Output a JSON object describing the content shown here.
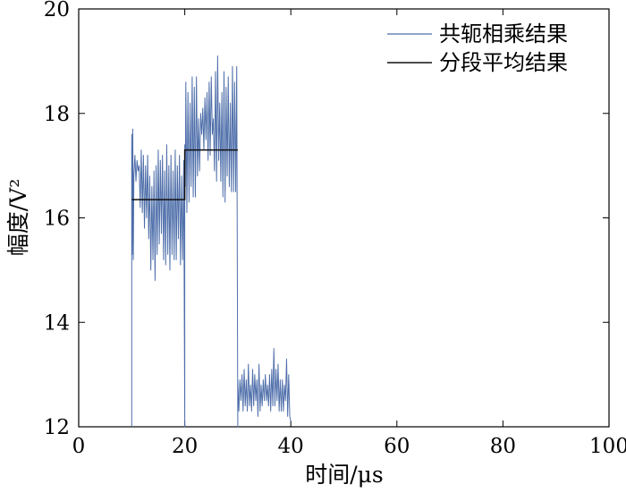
{
  "chart_data": {
    "type": "line",
    "title": "",
    "xlabel": "时间/μs",
    "ylabel": "幅度/V²",
    "xlim": [
      0,
      100
    ],
    "ylim": [
      12,
      20
    ],
    "xticks": [
      0,
      20,
      40,
      60,
      80,
      100
    ],
    "yticks": [
      12,
      14,
      16,
      18,
      20
    ],
    "x_tick_labels": [
      "0",
      "20",
      "40",
      "60",
      "80",
      "100"
    ],
    "y_tick_labels": [
      "12",
      "14",
      "16",
      "18",
      "20"
    ],
    "grid": false,
    "legend_position": "top-right",
    "series": [
      {
        "name": "共轭相乘结果",
        "color": "#4f6faa",
        "x": [
          10.0,
          10.0,
          10.1,
          10.2,
          10.3,
          10.4,
          10.6,
          10.8,
          11.0,
          11.2,
          11.4,
          11.6,
          11.8,
          12.0,
          12.2,
          12.4,
          12.6,
          12.8,
          13.0,
          13.2,
          13.4,
          13.6,
          13.8,
          14.0,
          14.2,
          14.4,
          14.6,
          14.8,
          15.0,
          15.2,
          15.4,
          15.6,
          15.8,
          16.0,
          16.2,
          16.4,
          16.6,
          16.8,
          17.0,
          17.2,
          17.4,
          17.6,
          17.8,
          18.0,
          18.2,
          18.4,
          18.6,
          18.8,
          19.0,
          19.2,
          19.4,
          19.6,
          19.8,
          20.0,
          20.0,
          20.1,
          20.2,
          20.4,
          20.6,
          20.8,
          21.0,
          21.2,
          21.4,
          21.6,
          21.8,
          22.0,
          22.2,
          22.4,
          22.6,
          22.8,
          23.0,
          23.2,
          23.4,
          23.6,
          23.8,
          24.0,
          24.2,
          24.4,
          24.6,
          24.8,
          25.0,
          25.2,
          25.4,
          25.6,
          25.8,
          26.0,
          26.2,
          26.4,
          26.6,
          26.8,
          27.0,
          27.2,
          27.4,
          27.6,
          27.8,
          28.0,
          28.2,
          28.4,
          28.6,
          28.8,
          29.0,
          29.2,
          29.4,
          29.6,
          29.8,
          30.0,
          30.0,
          30.2,
          30.4,
          30.6,
          30.8,
          31.0,
          31.2,
          31.4,
          31.6,
          31.8,
          32.0,
          32.2,
          32.4,
          32.6,
          32.8,
          33.0,
          33.2,
          33.4,
          33.6,
          33.8,
          34.0,
          34.2,
          34.4,
          34.6,
          34.8,
          35.0,
          35.2,
          35.4,
          35.6,
          35.8,
          36.0,
          36.2,
          36.4,
          36.6,
          36.8,
          37.0,
          37.2,
          37.4,
          37.6,
          37.8,
          38.0,
          38.2,
          38.4,
          38.6,
          38.8,
          39.0,
          39.2,
          39.4,
          39.6,
          39.8,
          40.0
        ],
        "y": [
          12.0,
          17.6,
          15.3,
          17.7,
          15.2,
          16.8,
          17.2,
          16.7,
          17.1,
          16.9,
          17.0,
          16.2,
          17.3,
          16.1,
          17.2,
          15.8,
          17.0,
          16.0,
          17.2,
          15.6,
          16.8,
          15.0,
          16.6,
          15.2,
          16.9,
          14.8,
          17.0,
          15.3,
          17.3,
          15.5,
          17.1,
          15.7,
          17.2,
          15.2,
          16.9,
          15.1,
          17.4,
          15.3,
          17.0,
          15.0,
          17.2,
          15.3,
          16.9,
          15.2,
          17.3,
          15.2,
          17.0,
          15.6,
          17.2,
          15.1,
          16.8,
          15.2,
          17.1,
          12.0,
          17.4,
          16.6,
          18.6,
          16.1,
          18.4,
          16.3,
          18.2,
          16.6,
          18.7,
          16.4,
          18.5,
          16.4,
          18.7,
          16.8,
          17.9,
          16.9,
          18.0,
          17.6,
          18.1,
          17.3,
          18.3,
          17.5,
          18.4,
          17.1,
          18.6,
          17.2,
          18.7,
          17.6,
          17.9,
          16.9,
          18.8,
          16.7,
          19.1,
          17.1,
          18.2,
          16.7,
          18.4,
          16.4,
          18.8,
          16.3,
          18.5,
          16.8,
          18.7,
          16.6,
          18.2,
          16.5,
          18.9,
          16.5,
          18.6,
          16.5,
          18.9,
          12.0,
          12.9,
          12.3,
          12.9,
          12.5,
          13.0,
          12.3,
          13.1,
          12.4,
          12.9,
          12.3,
          13.2,
          12.4,
          12.8,
          12.3,
          13.1,
          12.4,
          13.0,
          12.5,
          12.9,
          12.2,
          13.2,
          12.3,
          12.8,
          12.4,
          12.9,
          12.5,
          13.0,
          12.5,
          12.8,
          12.4,
          13.0,
          12.3,
          13.1,
          12.4,
          13.5,
          12.4,
          13.1,
          12.5,
          13.2,
          12.3,
          12.9,
          12.3,
          12.9,
          12.3,
          12.8,
          12.5,
          13.3,
          12.2,
          13.0,
          12.2,
          12.1
        ]
      },
      {
        "name": "分段平均结果",
        "color": "#111111",
        "x": [
          10,
          20,
          20,
          30
        ],
        "y": [
          16.35,
          16.35,
          17.3,
          17.3
        ]
      }
    ]
  }
}
